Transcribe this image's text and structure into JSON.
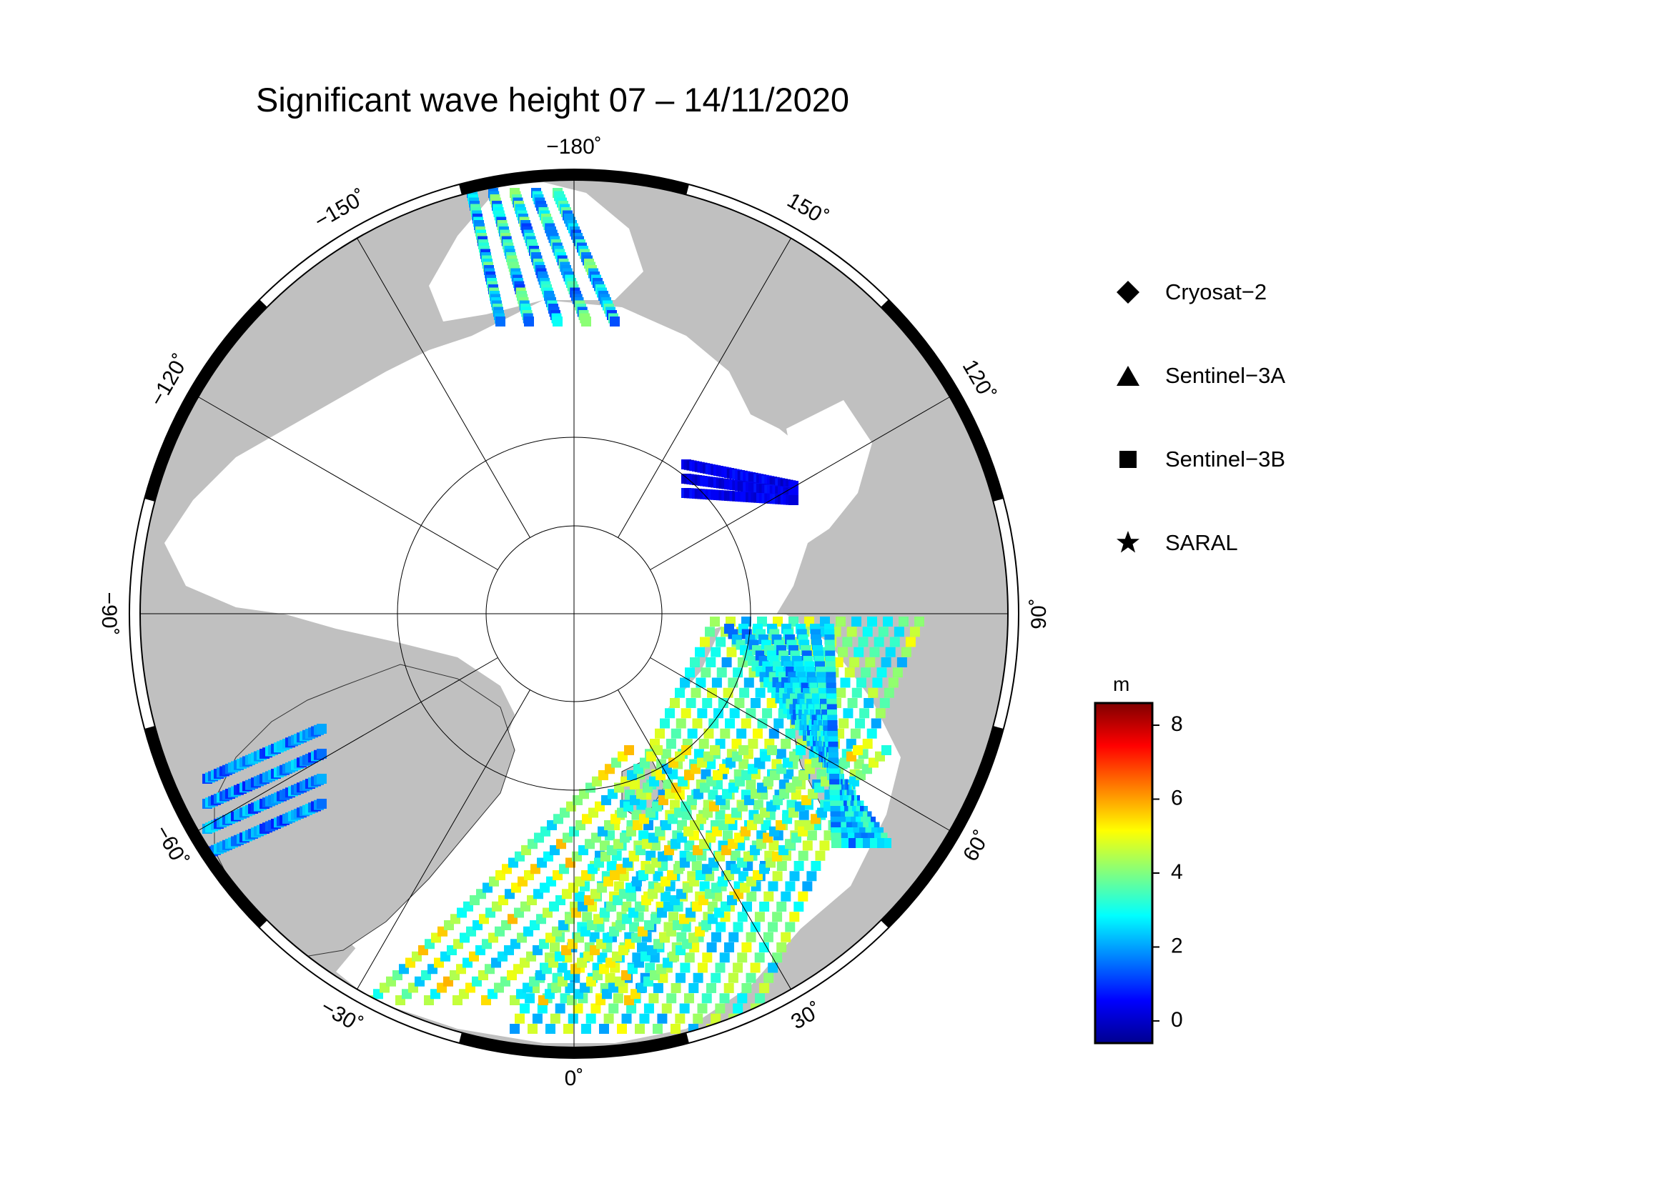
{
  "title": "Significant wave height 07 – 14/11/2020",
  "map": {
    "projection": "north polar stereographic",
    "longitude_labels": [
      {
        "lon": -180,
        "text": "−180˚"
      },
      {
        "lon": -150,
        "text": "−150˚"
      },
      {
        "lon": 150,
        "text": "150˚"
      },
      {
        "lon": -120,
        "text": "−120˚"
      },
      {
        "lon": 120,
        "text": "120˚"
      },
      {
        "lon": -90,
        "text": "−90˚"
      },
      {
        "lon": 90,
        "text": "90˚"
      },
      {
        "lon": -60,
        "text": "−60˚"
      },
      {
        "lon": 60,
        "text": "60˚"
      },
      {
        "lon": -30,
        "text": "−30˚"
      },
      {
        "lon": 30,
        "text": "30˚"
      },
      {
        "lon": 0,
        "text": "0˚"
      }
    ],
    "colors": {
      "land": "#c0c0c0",
      "sea_ice": "#ffffff",
      "frame": "#000000"
    }
  },
  "legend": [
    {
      "symbol": "diamond",
      "label": "Cryosat−2"
    },
    {
      "symbol": "triangle",
      "label": "Sentinel−3A"
    },
    {
      "symbol": "square",
      "label": "Sentinel−3B"
    },
    {
      "symbol": "star",
      "label": "SARAL"
    }
  ],
  "colorbar": {
    "unit": "m",
    "min": -0.6,
    "max": 8.6,
    "ticks": [
      "8",
      "6",
      "4",
      "2",
      "0"
    ],
    "tick_values": [
      8,
      6,
      4,
      2,
      0
    ],
    "colors": [
      "#00008f",
      "#0000ff",
      "#0080ff",
      "#00ffff",
      "#80ff80",
      "#ffff00",
      "#ff8000",
      "#ff0000",
      "#800000"
    ]
  }
}
